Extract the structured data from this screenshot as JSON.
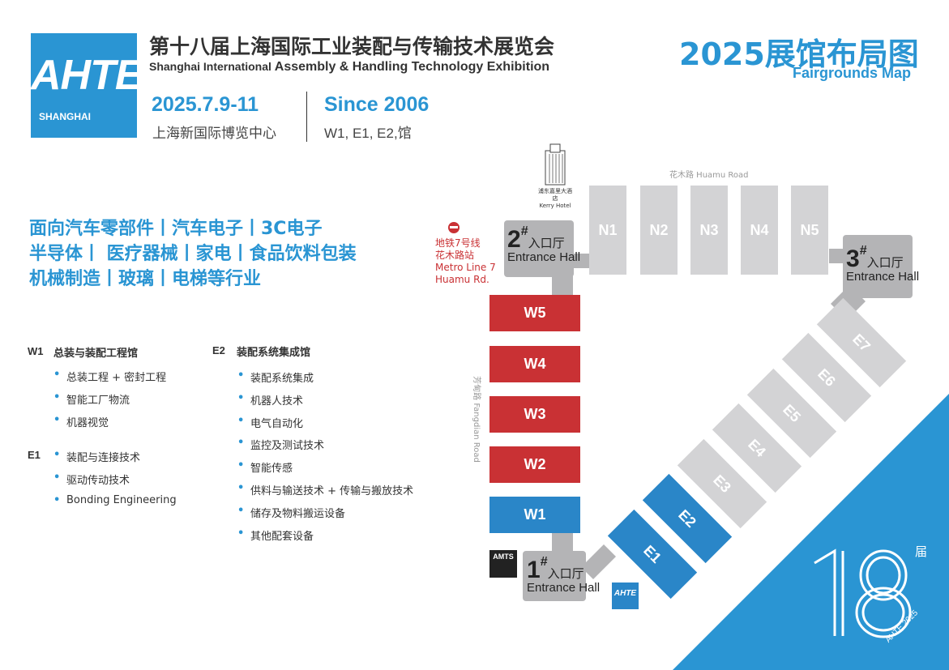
{
  "header": {
    "logo_text": "AHTE",
    "logo_sub": "SHANGHAI",
    "title_cn": "第十八届上海国际工业装配与传输技术展览会",
    "title_en_prefix": "Shanghai International",
    "title_en_main": "Assembly & Handling Technology Exhibition",
    "date": "2025.7.9-11",
    "venue": "上海新国际博览中心",
    "since": "Since 2006",
    "halls": "W1, E1, E2,馆",
    "map_title": "2025展馆布局图",
    "map_subtitle": "Fairgrounds Map"
  },
  "industries": [
    "面向汽车零部件丨汽车电子丨3C电子",
    "半导体丨 医疗器械丨家电丨食品饮料包装",
    "机械制造丨玻璃丨电梯等行业"
  ],
  "hall_info": {
    "w1": {
      "code": "W1",
      "name": "总装与装配工程馆",
      "items": [
        "总装工程 + 密封工程",
        "智能工厂物流",
        "机器视觉"
      ]
    },
    "e1": {
      "code": "E1",
      "items": [
        "装配与连接技术",
        "驱动传动技术",
        "Bonding Engineering"
      ]
    },
    "e2": {
      "code": "E2",
      "name": "装配系统集成馆",
      "items": [
        "装配系统集成",
        "机器人技术",
        "电气自动化",
        "监控及测试技术",
        "智能传感",
        "供料与输送技术 + 传输与搬放技术",
        "储存及物料搬运设备",
        "其他配套设备"
      ]
    }
  },
  "map": {
    "north_halls": [
      "N1",
      "N2",
      "N3",
      "N4",
      "N5"
    ],
    "west_halls": [
      {
        "label": "W5",
        "status": "exhibition"
      },
      {
        "label": "W4",
        "status": "exhibition"
      },
      {
        "label": "W3",
        "status": "exhibition"
      },
      {
        "label": "W2",
        "status": "exhibition"
      },
      {
        "label": "W1",
        "status": "ahte"
      }
    ],
    "east_halls": [
      {
        "label": "E1",
        "status": "ahte"
      },
      {
        "label": "E2",
        "status": "ahte"
      },
      {
        "label": "E3",
        "status": "other"
      },
      {
        "label": "E4",
        "status": "other"
      },
      {
        "label": "E5",
        "status": "other"
      },
      {
        "label": "E6",
        "status": "other"
      },
      {
        "label": "E7",
        "status": "other"
      }
    ],
    "entrances": [
      {
        "num": "1",
        "mark": "#",
        "cn": "入口厅",
        "en": "Entrance Hall"
      },
      {
        "num": "2",
        "mark": "#",
        "cn": "入口厅",
        "en": "Entrance Hall"
      },
      {
        "num": "3",
        "mark": "#",
        "cn": "入口厅",
        "en": "Entrance Hall"
      }
    ],
    "hotel": {
      "cn": "浦东嘉里大酒店",
      "en": "Kerry Hotel"
    },
    "metro": {
      "cn1": "地铁7号线",
      "cn2": "花木路站",
      "en1": "Metro Line 7",
      "en2": "Huamu Rd."
    },
    "road_north": "花木路 Huamu Road",
    "road_west": "芳甸路 Fangdian Road",
    "amts_logo": "AMTS",
    "ahte_mini_logo": "AHTE",
    "colors": {
      "ahte_blue": "#2a86c8",
      "red": "#c93134",
      "grey": "#d3d3d5"
    }
  },
  "badge": {
    "number": "18",
    "suffix": "届",
    "caption": "AHTE 2025"
  }
}
